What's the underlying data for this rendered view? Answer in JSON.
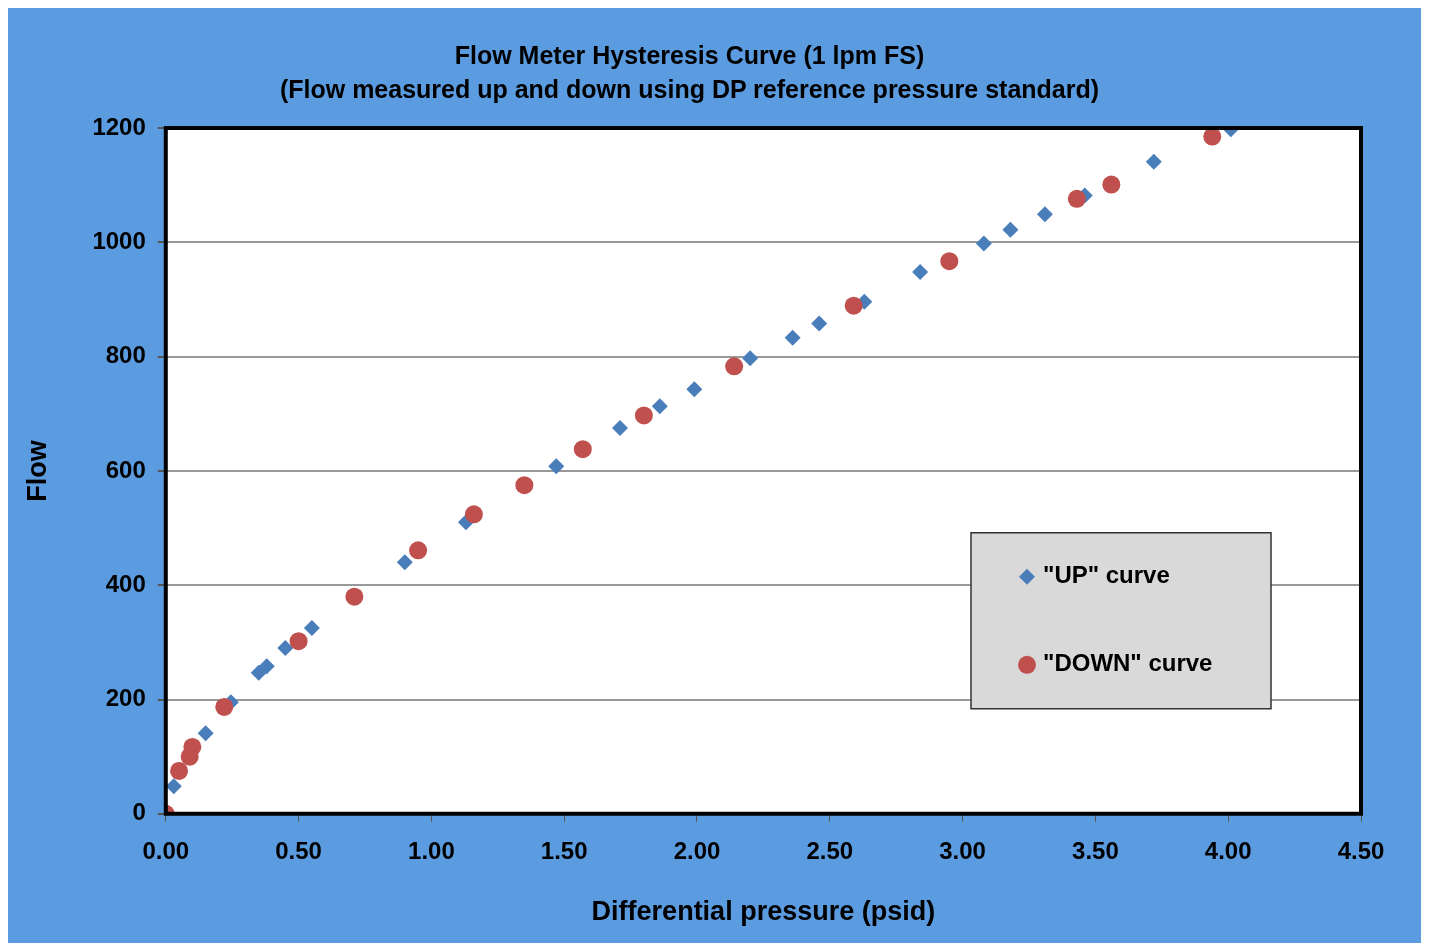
{
  "chart_data": {
    "type": "scatter",
    "title": "Flow Meter Hysteresis Curve (1 lpm FS)",
    "subtitle": "(Flow measured up and down using DP reference pressure standard)",
    "xlabel": "Differential pressure (psid)",
    "ylabel": "Flow",
    "series": [
      {
        "name": "\"UP\" curve",
        "color": "#4a7ebb",
        "marker": "diamond",
        "x": [
          0.03,
          0.15,
          0.245,
          0.35,
          0.38,
          0.45,
          0.55,
          0.9,
          1.13,
          1.47,
          1.71,
          1.86,
          1.99,
          2.2,
          2.36,
          2.46,
          2.63,
          2.84,
          3.08,
          3.18,
          3.31,
          3.46,
          3.72,
          4.01
        ],
        "values": [
          48,
          141,
          195,
          247,
          258,
          290,
          325,
          440,
          510,
          608,
          675,
          713,
          743,
          797,
          833,
          858,
          896,
          948,
          998,
          1022,
          1049,
          1082,
          1141,
          1198
        ]
      },
      {
        "name": "\"DOWN\" curve",
        "color": "#c0504d",
        "marker": "circle",
        "x": [
          0,
          0.05,
          0.09,
          0.1,
          0.22,
          0.5,
          0.71,
          0.95,
          1.16,
          1.35,
          1.57,
          1.8,
          2.14,
          2.59,
          2.95,
          3.43,
          3.56,
          3.94
        ],
        "values": [
          0,
          75,
          100,
          117,
          187,
          302,
          380,
          461,
          524,
          575,
          638,
          697,
          783,
          889,
          967,
          1076,
          1101,
          1185
        ]
      }
    ],
    "xlim": [
      0,
      4.5
    ],
    "xticks": [
      {
        "value": 0,
        "label": "0.00"
      },
      {
        "value": 0.5,
        "label": "0.50"
      },
      {
        "value": 1,
        "label": "1.00"
      },
      {
        "value": 1.5,
        "label": "1.50"
      },
      {
        "value": 2,
        "label": "2.00"
      },
      {
        "value": 2.5,
        "label": "2.50"
      },
      {
        "value": 3,
        "label": "3.00"
      },
      {
        "value": 3.5,
        "label": "3.50"
      },
      {
        "value": 4,
        "label": "4.00"
      },
      {
        "value": 4.5,
        "label": "4.50"
      }
    ],
    "ylim": [
      0,
      1200
    ],
    "yticks": [
      0,
      200,
      400,
      600,
      800,
      1000,
      1200
    ],
    "grid": "y",
    "legend": "bottom right"
  }
}
